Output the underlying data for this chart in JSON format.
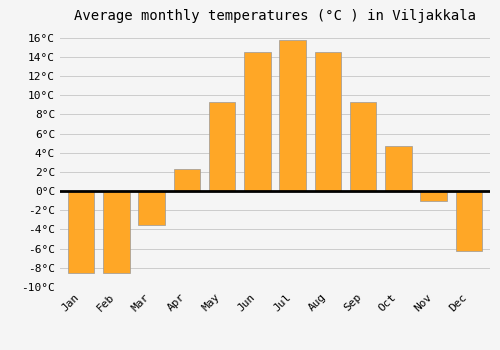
{
  "title": "Average monthly temperatures (°C ) in Viljakkala",
  "months": [
    "Jan",
    "Feb",
    "Mar",
    "Apr",
    "May",
    "Jun",
    "Jul",
    "Aug",
    "Sep",
    "Oct",
    "Nov",
    "Dec"
  ],
  "temperatures": [
    -8.5,
    -8.5,
    -3.5,
    2.3,
    9.3,
    14.5,
    15.8,
    14.5,
    9.3,
    4.7,
    -1.0,
    -6.2
  ],
  "bar_color": "#FFA726",
  "bar_edge_color": "#999999",
  "background_color": "#f5f5f5",
  "plot_bg_color": "#f5f5f5",
  "grid_color": "#cccccc",
  "ylim": [
    -10,
    17
  ],
  "yticks": [
    -10,
    -8,
    -6,
    -4,
    -2,
    0,
    2,
    4,
    6,
    8,
    10,
    12,
    14,
    16
  ],
  "title_fontsize": 10,
  "tick_fontsize": 8,
  "bar_width": 0.75,
  "figsize": [
    5.0,
    3.5
  ],
  "dpi": 100
}
